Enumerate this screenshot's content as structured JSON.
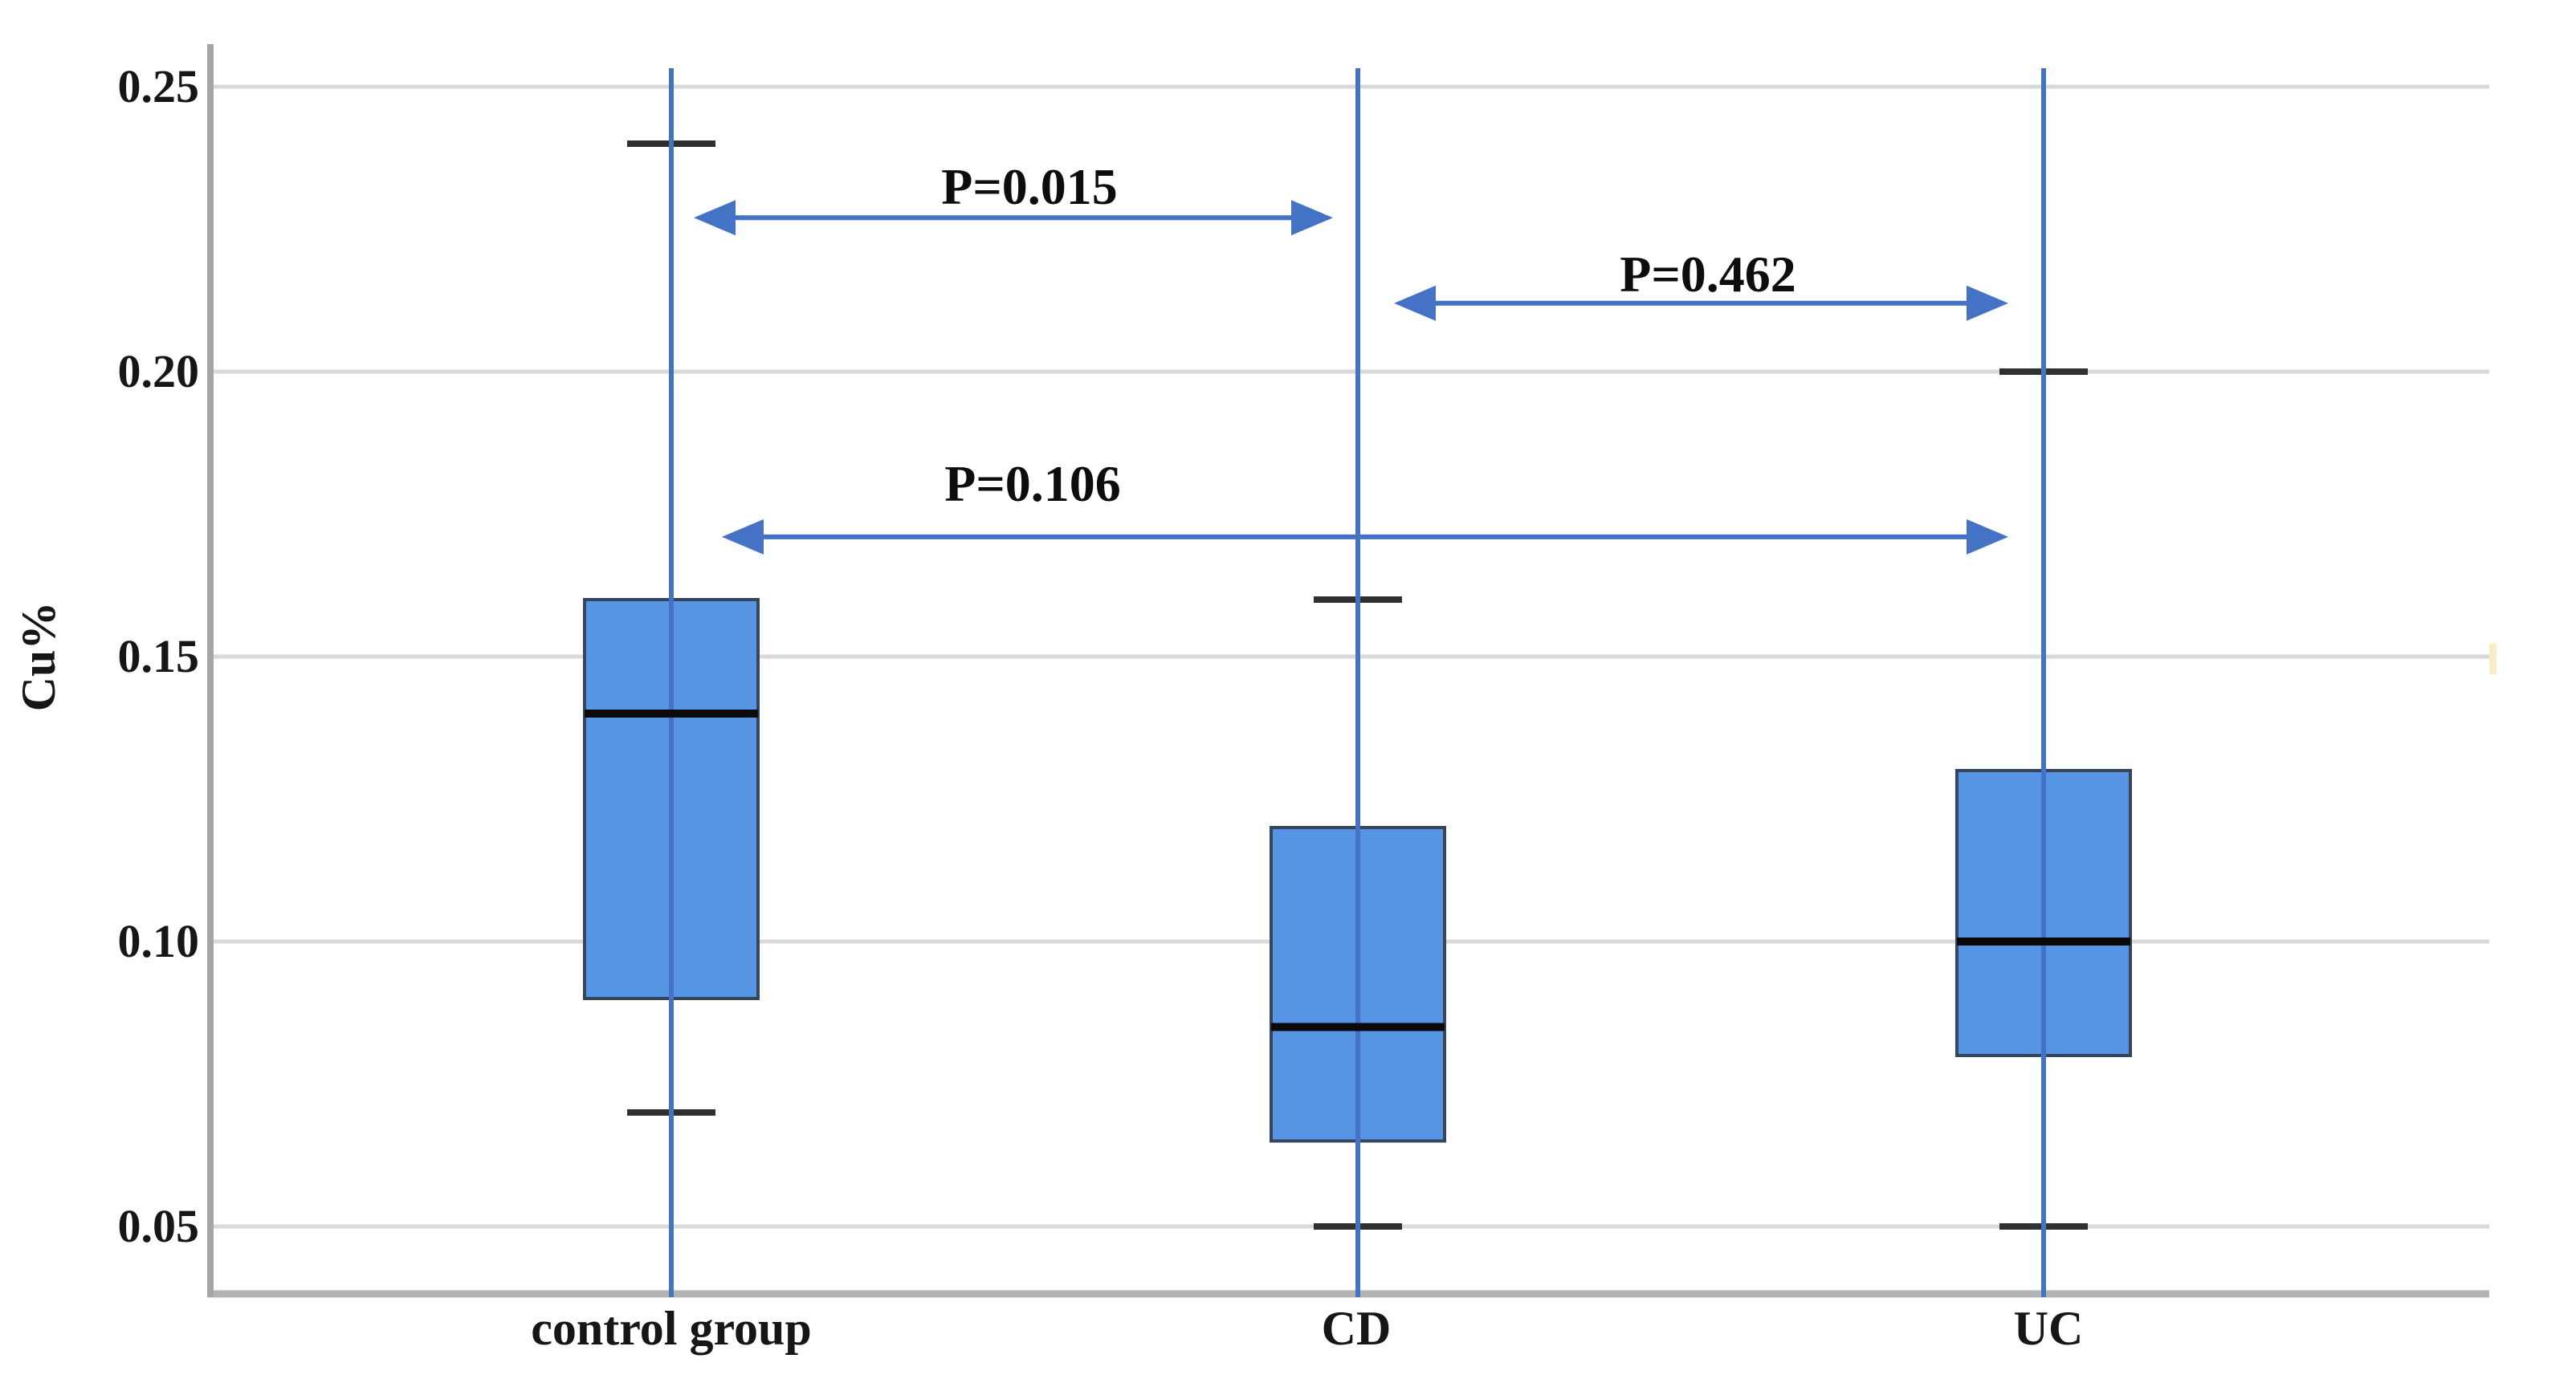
{
  "chart_data": {
    "type": "boxplot",
    "title": "",
    "ylabel": "Cu%",
    "xlabel": "",
    "ylim": [
      0.04,
      0.253
    ],
    "yticks": [
      0.25,
      0.2,
      0.15,
      0.1,
      0.05
    ],
    "ytick_labels": [
      "0.25",
      "0.20",
      "0.15",
      "0.10",
      "0.05"
    ],
    "grid": true,
    "legend": false,
    "categories": [
      "control group",
      "CD",
      "UC"
    ],
    "series": [
      {
        "label": "control group",
        "whisker_low": 0.07,
        "q1": 0.09,
        "median": 0.14,
        "q3": 0.16,
        "whisker_high": 0.24
      },
      {
        "label": "CD",
        "whisker_low": 0.05,
        "q1": 0.065,
        "median": 0.085,
        "q3": 0.12,
        "whisker_high": 0.16
      },
      {
        "label": "UC",
        "whisker_low": 0.05,
        "q1": 0.08,
        "median": 0.1,
        "q3": 0.13,
        "whisker_high": 0.2
      }
    ],
    "annotations": [
      {
        "label": "P=0.015",
        "from": "control group",
        "to": "CD",
        "y_level": 0.227
      },
      {
        "label": "P=0.462",
        "from": "CD",
        "to": "UC",
        "y_level": 0.212
      },
      {
        "label": "P=0.106",
        "from": "control group",
        "to": "UC",
        "y_level": 0.171
      }
    ],
    "colors": {
      "box_fill": "#5695e3",
      "box_border": "#36455c",
      "median": "#0a0a0a",
      "whisker": "#303030",
      "annotation_blue": "#4472c4",
      "gridline": "#d9d9d9",
      "axis_line": "#a6a6a6",
      "baseline": "#b3b3b3",
      "text": "#161616",
      "artifact": "#f9edc8"
    }
  }
}
